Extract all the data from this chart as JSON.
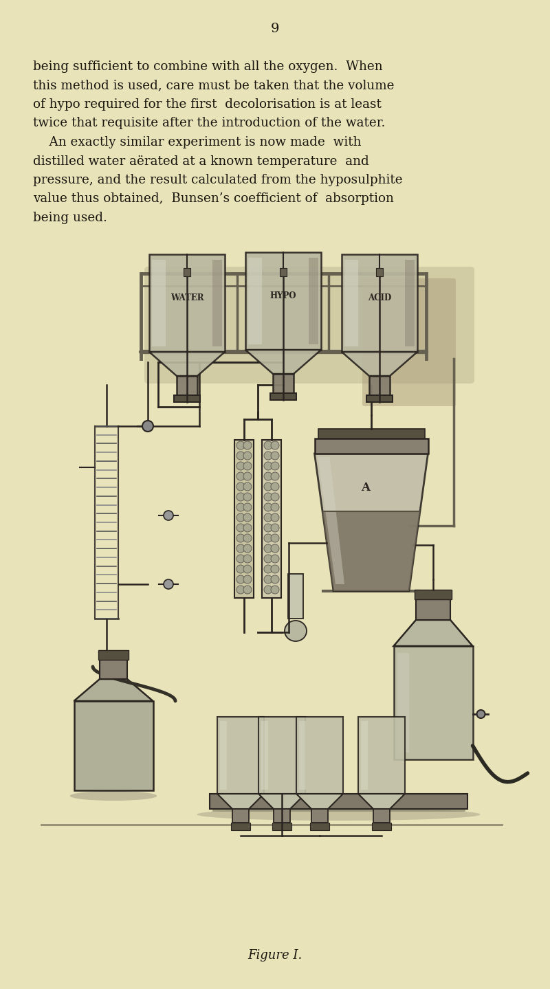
{
  "bg_color": "#e8e3b8",
  "page_number": "9",
  "text_lines": [
    "being sufficient to combine with all the oxygen.  When",
    "this method is used, care must be taken that the volume",
    "of hypo required for the first  decolorisation is at least",
    "twice that requisite after the introduction of the water.",
    "    An exactly similar experiment is now made  with",
    "distilled water aërated at a known temperature  and",
    "pressure, and the result calculated from the hyposulphite",
    "value thus obtained,  Bunsen’s coefficient of  absorption",
    "being used."
  ],
  "caption": "Figure I.",
  "ink": "#1a1610",
  "dark": "#2a2520",
  "mid": "#555040",
  "light_bottle": "#c8c4a0",
  "shelf_metal": "#888070",
  "glass_fill": "#b8b49a",
  "shadow": "#a09880"
}
